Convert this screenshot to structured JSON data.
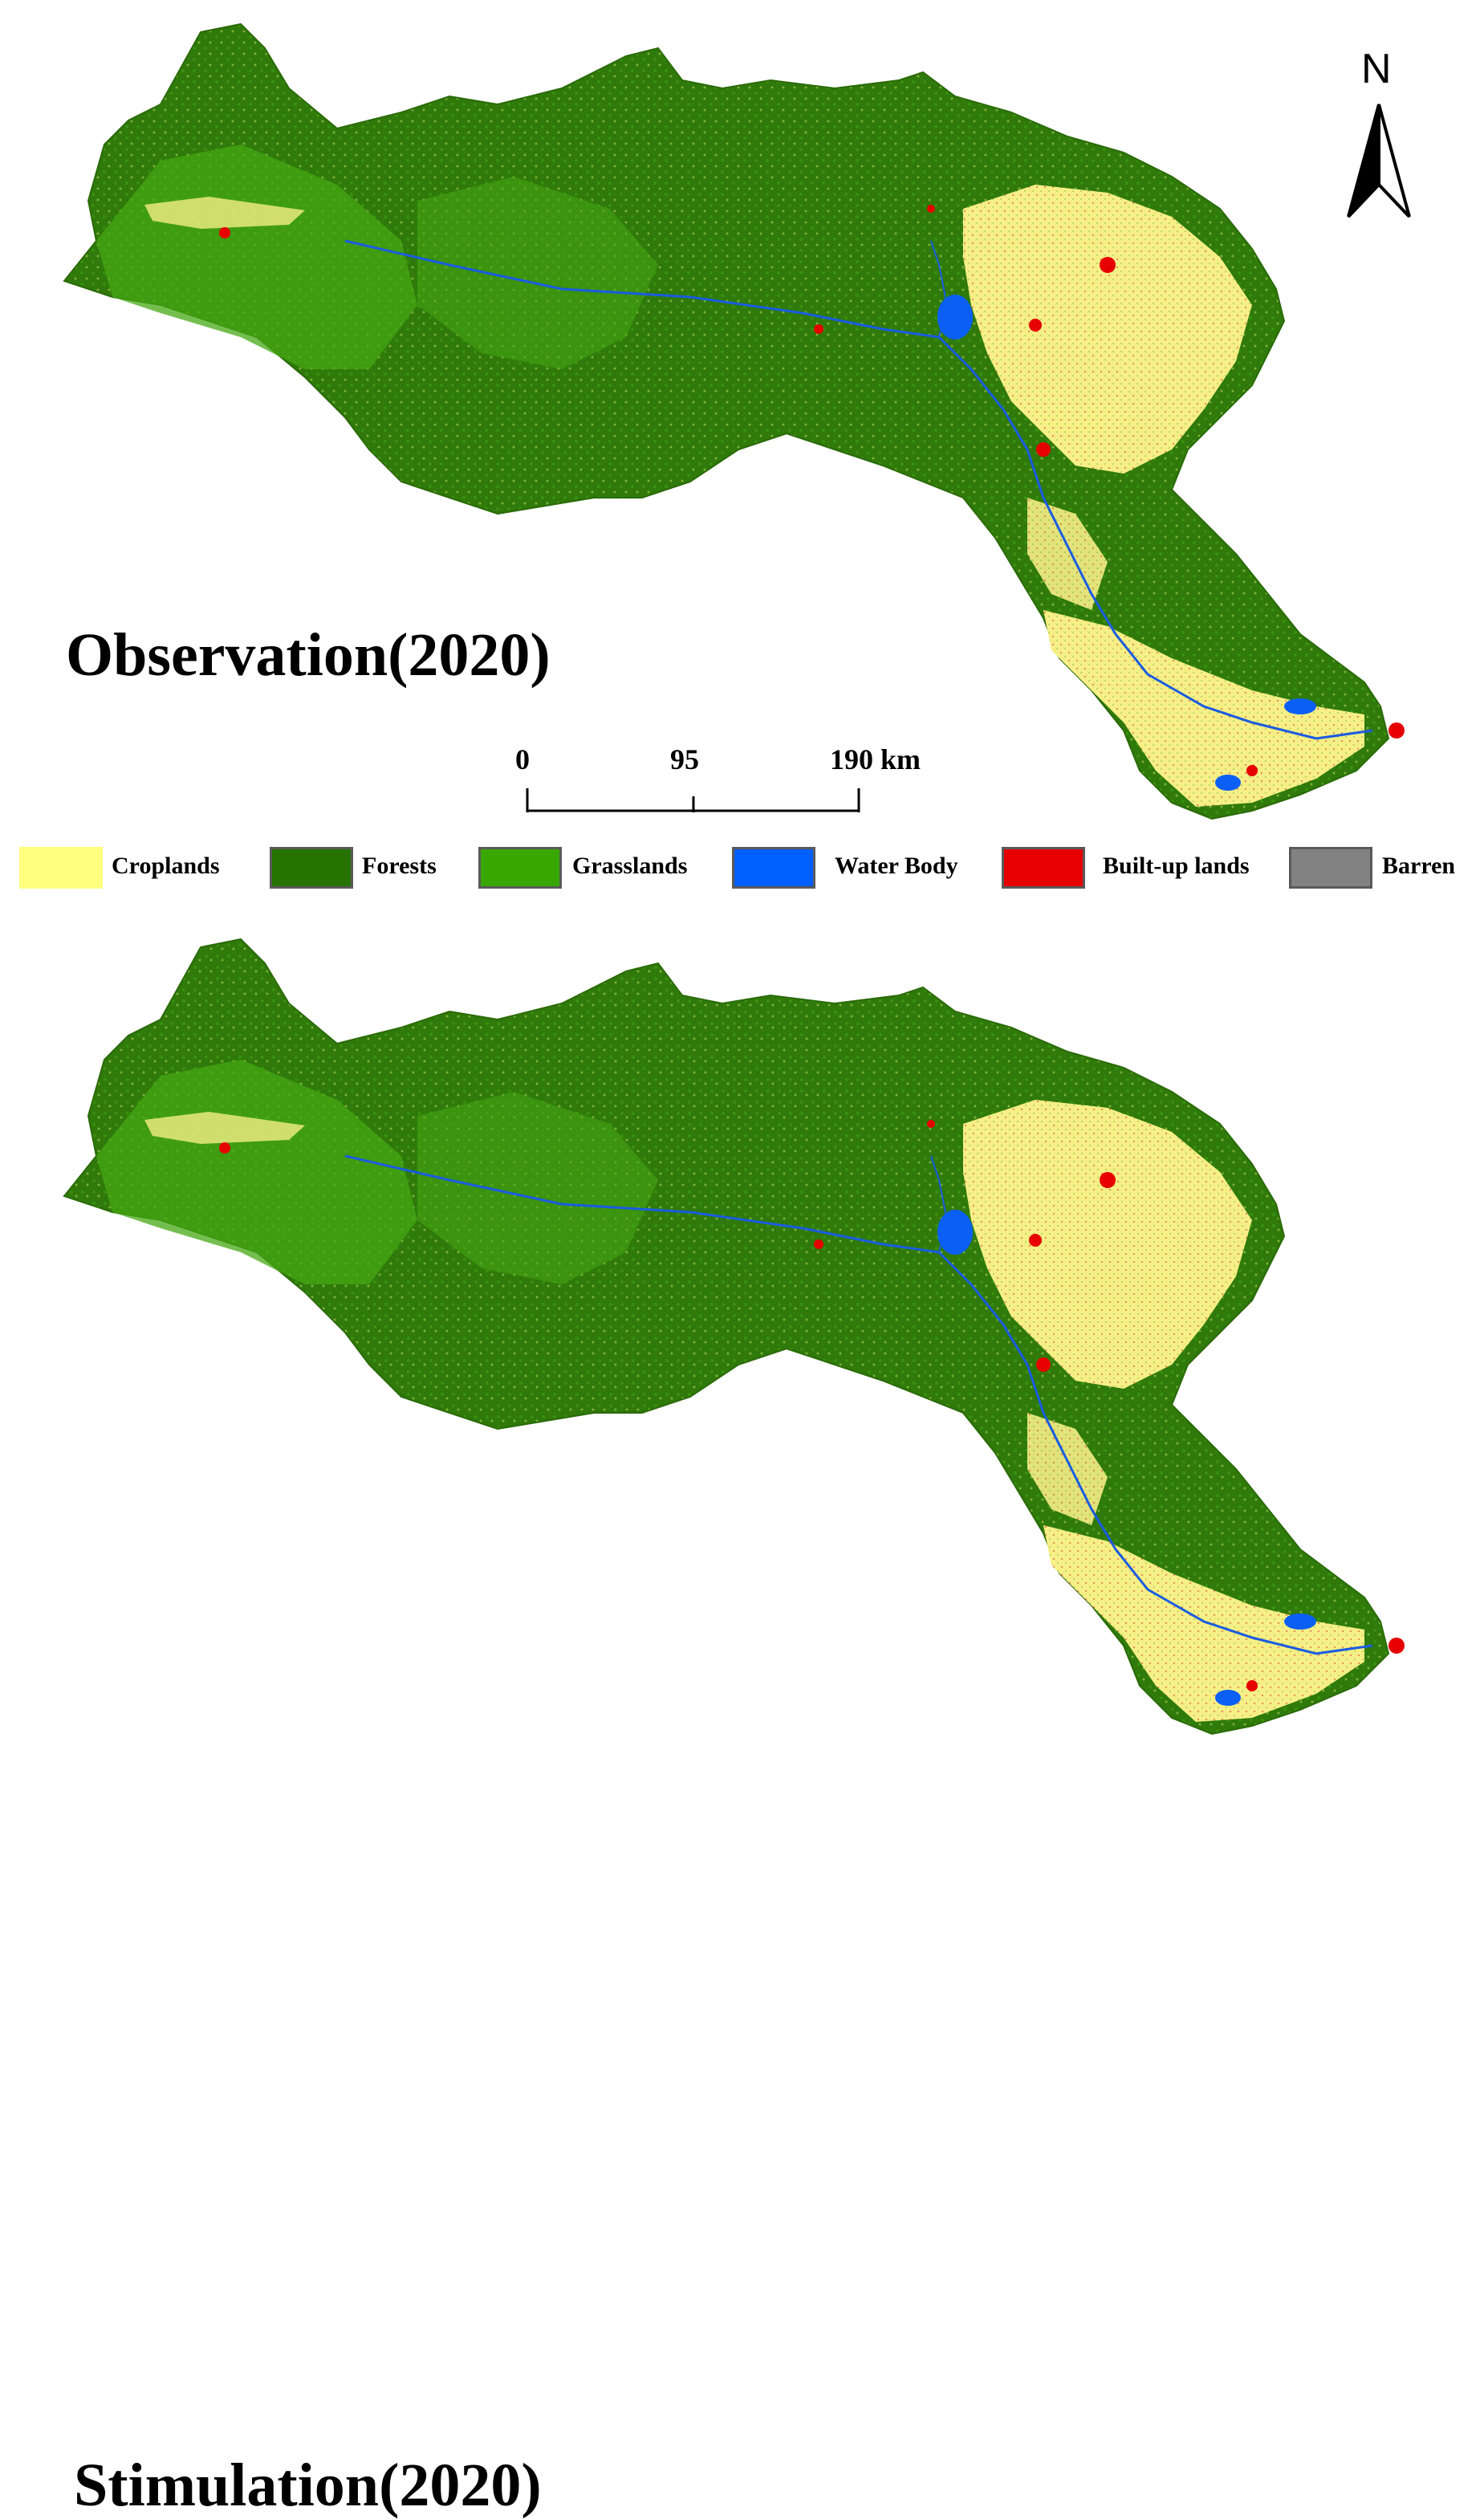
{
  "maps": [
    {
      "id": "observation",
      "title": "Observation(2020)"
    },
    {
      "id": "stimulation",
      "title": "Stimulation(2020)"
    }
  ],
  "north_arrow": {
    "label": "N"
  },
  "scale_bar": {
    "labels": [
      "0",
      "95",
      "190 km"
    ]
  },
  "legend": [
    {
      "label": "Croplands",
      "color": "#ffff80"
    },
    {
      "label": "Forests",
      "color": "#267300"
    },
    {
      "label": "Grasslands",
      "color": "#38a800"
    },
    {
      "label": "Water Body",
      "color": "#0060ff"
    },
    {
      "label": "Built-up lands",
      "color": "#e60000"
    },
    {
      "label": "Barren",
      "color": "#828282"
    }
  ]
}
